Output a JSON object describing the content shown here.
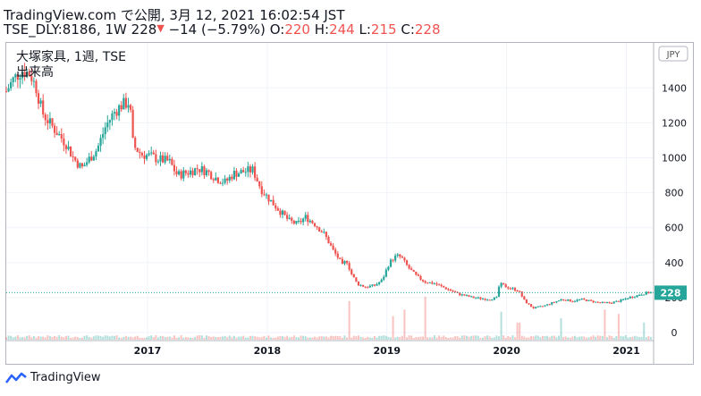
{
  "header": {
    "line1": "TradingView.com で公開, 3月 12, 2021 16:02:54 JST",
    "symbol": "TSE_DLY:8186, 1W",
    "last": "228",
    "arrow": "▼",
    "change": "−14 (−5.79%)",
    "o_label": "O:",
    "o_value": "220",
    "h_label": "H:",
    "h_value": "244",
    "l_label": "L:",
    "l_value": "215",
    "c_label": "C:",
    "c_value": "228"
  },
  "legend": {
    "title": "大塚家具, 1週, TSE",
    "volume_label": "出来高"
  },
  "footer": {
    "brand": "TradingView"
  },
  "colors": {
    "up": "#26a69a",
    "down": "#ef5350",
    "grid": "#f0f3fa",
    "axis_text": "#131722",
    "price_tag": "#26a69a"
  },
  "chart_data": {
    "type": "candlestick",
    "currency": "JPY",
    "x_ticks": [
      "2017",
      "2018",
      "2019",
      "2020",
      "2021"
    ],
    "x_tick_dates": [
      2017.0,
      2018.0,
      2019.0,
      2020.0,
      2021.0
    ],
    "y_ticks": [
      1400,
      1200,
      1000,
      800,
      600,
      400,
      200,
      0
    ],
    "last_price_label": "228",
    "last_price": 228,
    "x_range": [
      2015.82,
      2021.22
    ],
    "price_range": [
      0,
      1560
    ],
    "series_close": [
      [
        2015.82,
        1380
      ],
      [
        2015.88,
        1450
      ],
      [
        2015.95,
        1500
      ],
      [
        2016.02,
        1480
      ],
      [
        2016.07,
        1400
      ],
      [
        2016.12,
        1260
      ],
      [
        2016.18,
        1200
      ],
      [
        2016.25,
        1140
      ],
      [
        2016.32,
        1080
      ],
      [
        2016.38,
        1000
      ],
      [
        2016.45,
        940
      ],
      [
        2016.52,
        1000
      ],
      [
        2016.58,
        1050
      ],
      [
        2016.65,
        1180
      ],
      [
        2016.72,
        1260
      ],
      [
        2016.78,
        1300
      ],
      [
        2016.85,
        1320
      ],
      [
        2016.88,
        1070
      ],
      [
        2016.95,
        1020
      ],
      [
        2017.02,
        1010
      ],
      [
        2017.1,
        990
      ],
      [
        2017.18,
        980
      ],
      [
        2017.25,
        900
      ],
      [
        2017.35,
        920
      ],
      [
        2017.42,
        940
      ],
      [
        2017.5,
        920
      ],
      [
        2017.58,
        880
      ],
      [
        2017.65,
        860
      ],
      [
        2017.72,
        910
      ],
      [
        2017.8,
        920
      ],
      [
        2017.88,
        930
      ],
      [
        2017.95,
        820
      ],
      [
        2018.02,
        760
      ],
      [
        2018.1,
        700
      ],
      [
        2018.18,
        640
      ],
      [
        2018.25,
        620
      ],
      [
        2018.32,
        660
      ],
      [
        2018.4,
        620
      ],
      [
        2018.48,
        560
      ],
      [
        2018.55,
        470
      ],
      [
        2018.6,
        420
      ],
      [
        2018.63,
        380
      ],
      [
        2018.66,
        420
      ],
      [
        2018.7,
        340
      ],
      [
        2018.75,
        280
      ],
      [
        2018.82,
        260
      ],
      [
        2018.9,
        270
      ],
      [
        2018.96,
        300
      ],
      [
        2019.02,
        400
      ],
      [
        2019.08,
        440
      ],
      [
        2019.12,
        430
      ],
      [
        2019.18,
        370
      ],
      [
        2019.25,
        320
      ],
      [
        2019.32,
        290
      ],
      [
        2019.4,
        280
      ],
      [
        2019.5,
        250
      ],
      [
        2019.6,
        220
      ],
      [
        2019.72,
        200
      ],
      [
        2019.85,
        190
      ],
      [
        2019.92,
        200
      ],
      [
        2019.94,
        280
      ],
      [
        2020.0,
        260
      ],
      [
        2020.05,
        250
      ],
      [
        2020.1,
        240
      ],
      [
        2020.15,
        180
      ],
      [
        2020.22,
        140
      ],
      [
        2020.3,
        150
      ],
      [
        2020.38,
        170
      ],
      [
        2020.46,
        190
      ],
      [
        2020.55,
        180
      ],
      [
        2020.62,
        190
      ],
      [
        2020.7,
        180
      ],
      [
        2020.78,
        170
      ],
      [
        2020.86,
        170
      ],
      [
        2020.94,
        180
      ],
      [
        2021.02,
        200
      ],
      [
        2021.08,
        210
      ],
      [
        2021.12,
        220
      ],
      [
        2021.18,
        228
      ]
    ],
    "volume_spikes": [
      [
        2018.68,
        0.9
      ],
      [
        2019.05,
        0.55
      ],
      [
        2019.15,
        0.7
      ],
      [
        2019.32,
        1.0
      ],
      [
        2019.95,
        0.65
      ],
      [
        2020.1,
        0.4
      ],
      [
        2020.45,
        0.5
      ],
      [
        2020.82,
        0.7
      ],
      [
        2020.93,
        0.6
      ],
      [
        2021.15,
        0.4
      ]
    ]
  }
}
